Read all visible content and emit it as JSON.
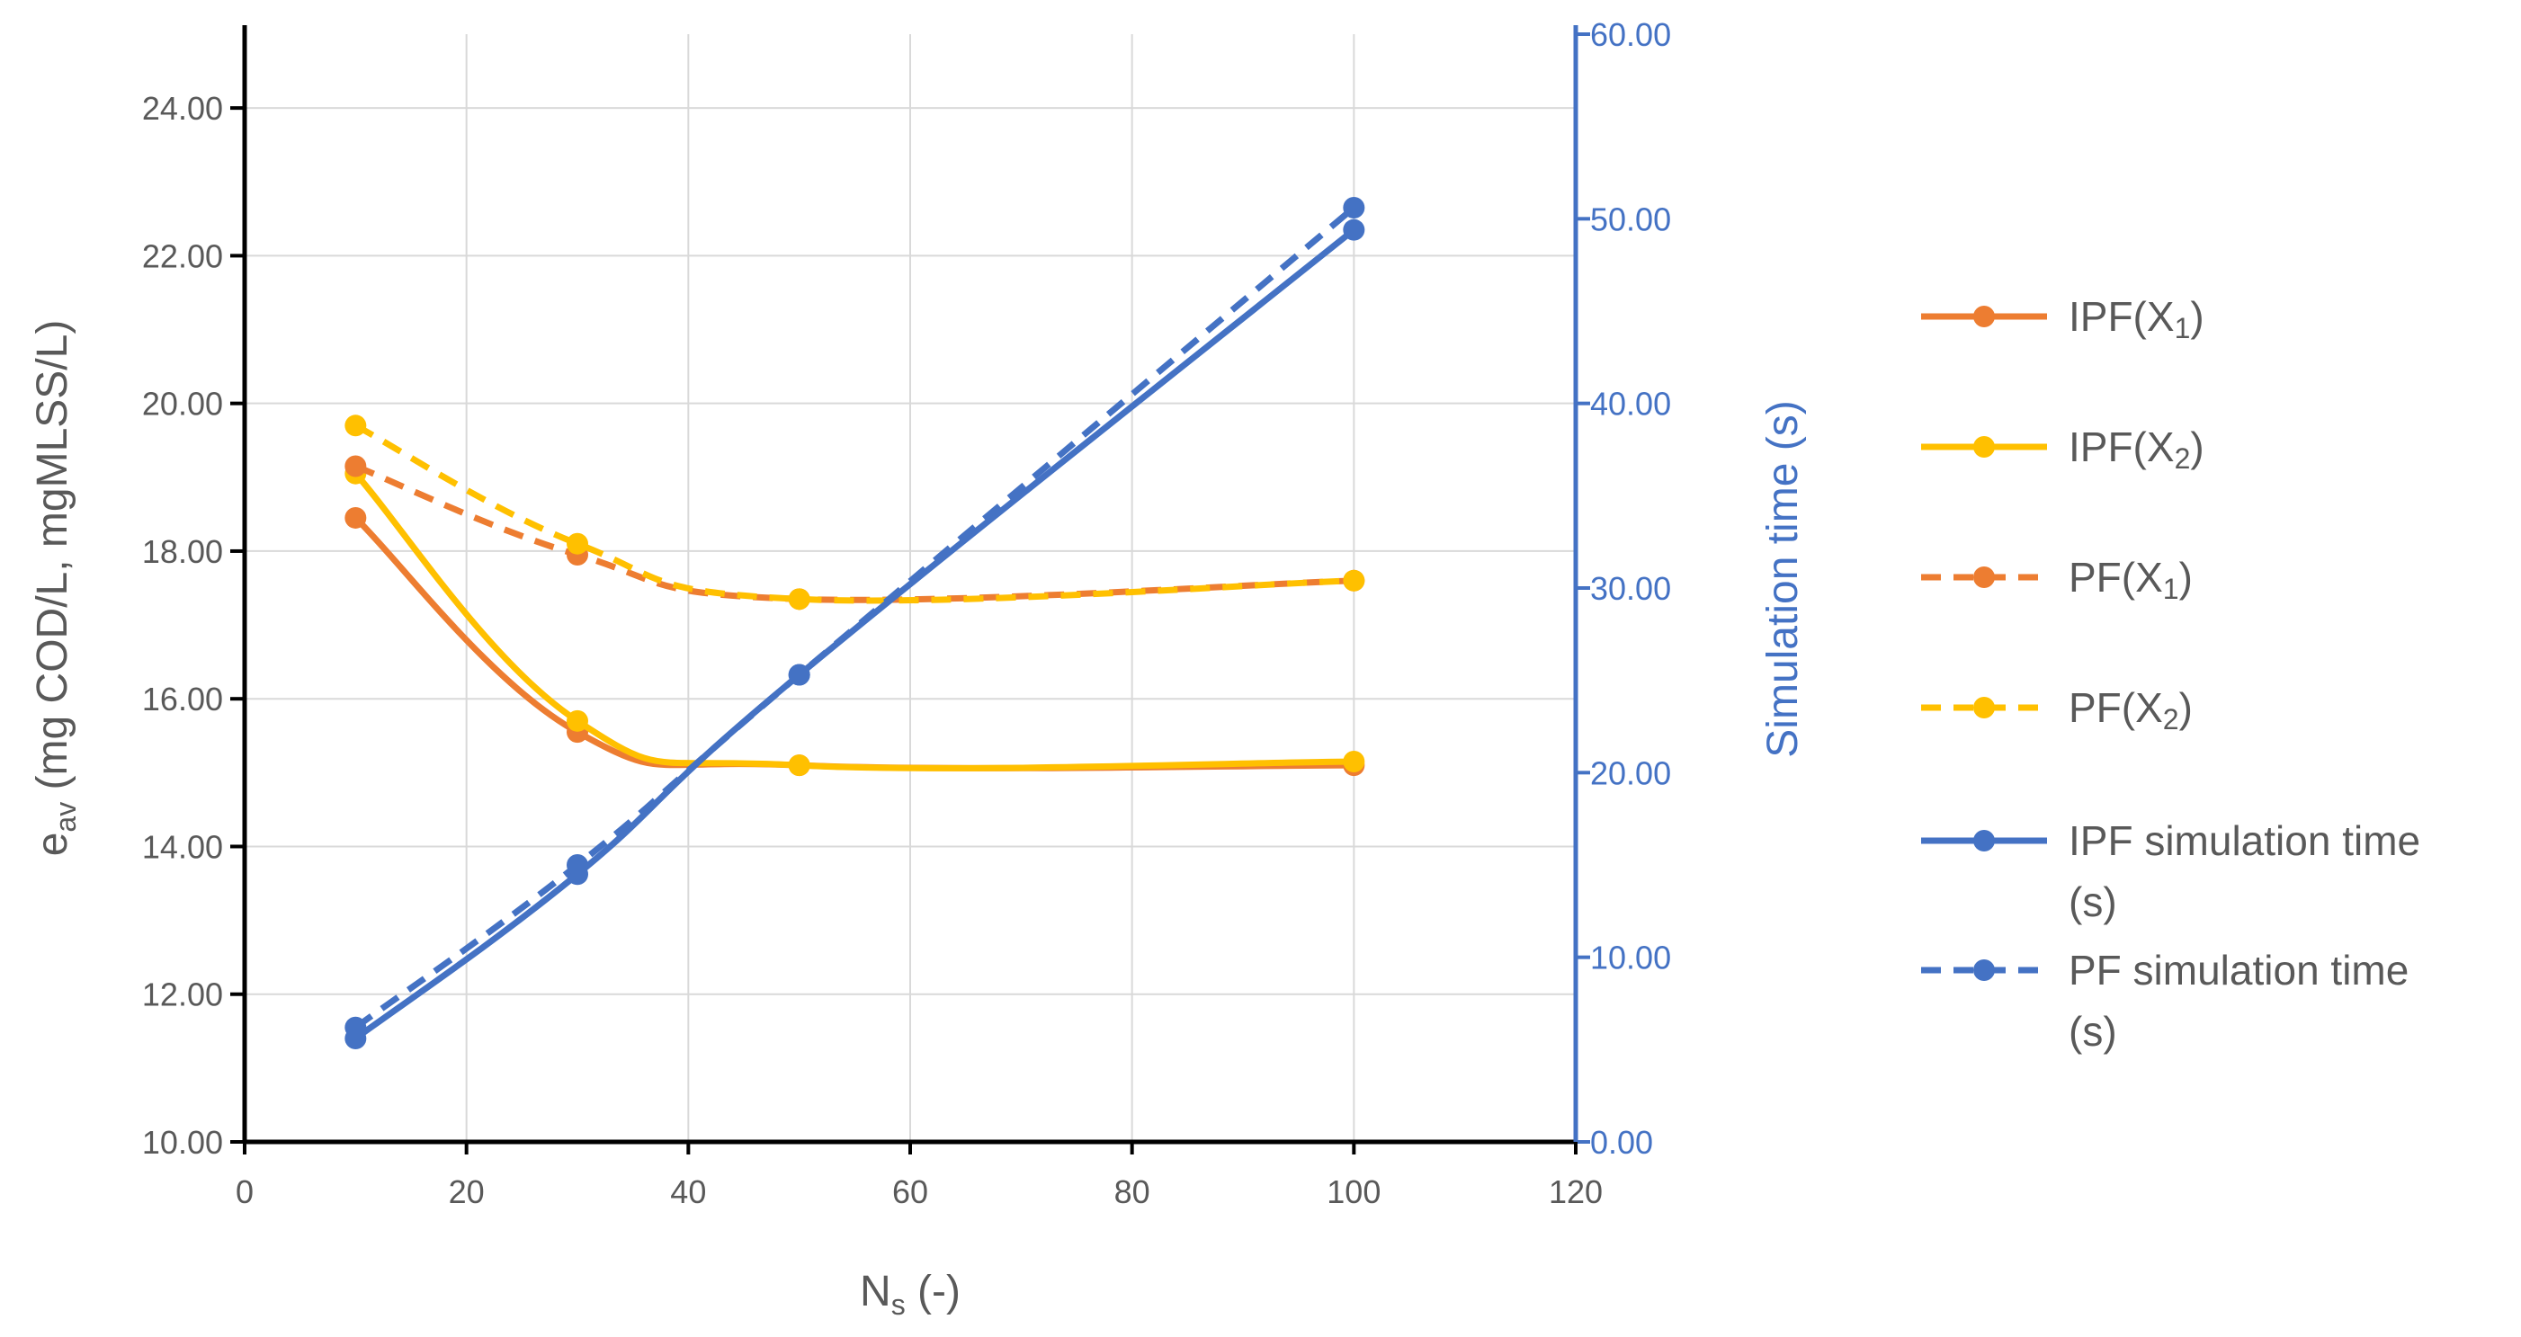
{
  "chart_data": {
    "type": "line",
    "x": [
      10,
      30,
      50,
      100
    ],
    "xlabel": "N",
    "xlabel_sub": "s",
    "xlabel_suffix": " (-)",
    "xlim": [
      0,
      120
    ],
    "xticks": [
      0,
      20,
      40,
      60,
      80,
      100,
      120
    ],
    "ylabel": "e",
    "ylabel_sub": "av",
    "ylabel_suffix": " (mg COD/L, mgMLSS/L)",
    "ylim": [
      10,
      25
    ],
    "yticks": [
      "10.00",
      "12.00",
      "14.00",
      "16.00",
      "18.00",
      "20.00",
      "22.00",
      "24.00"
    ],
    "y2label": "Simulation time (s)",
    "y2lim": [
      0,
      60
    ],
    "y2ticks": [
      "0.00",
      "10.00",
      "20.00",
      "30.00",
      "40.00",
      "50.00",
      "60.00"
    ],
    "grid": true,
    "legend_position": "right",
    "series": [
      {
        "name": "IPF(X1)",
        "legend_label": "IPF(X",
        "legend_sub": "1",
        "legend_suffix": ")",
        "axis": "left",
        "color": "#ED7D31",
        "dash": false,
        "values": [
          18.45,
          15.55,
          15.1,
          15.1
        ]
      },
      {
        "name": "IPF(X2)",
        "legend_label": "IPF(X",
        "legend_sub": "2",
        "legend_suffix": ")",
        "axis": "left",
        "color": "#FFC000",
        "dash": false,
        "values": [
          19.05,
          15.7,
          15.1,
          15.15
        ]
      },
      {
        "name": "PF(X1)",
        "legend_label": "PF(X",
        "legend_sub": "1",
        "legend_suffix": ")",
        "axis": "left",
        "color": "#ED7D31",
        "dash": true,
        "values": [
          19.15,
          17.95,
          17.35,
          17.6
        ]
      },
      {
        "name": "PF(X2)",
        "legend_label": "PF(X",
        "legend_sub": "2",
        "legend_suffix": ")",
        "axis": "left",
        "color": "#FFC000",
        "dash": true,
        "values": [
          19.7,
          18.1,
          17.35,
          17.6
        ]
      },
      {
        "name": "IPF simulation time (s)",
        "legend_label": "IPF simulation time",
        "legend_line2": "(s)",
        "axis": "right",
        "color": "#4472C4",
        "dash": false,
        "values": [
          5.6,
          14.5,
          25.3,
          49.4
        ]
      },
      {
        "name": "PF simulation time (s)",
        "legend_label": "PF simulation time",
        "legend_line2": "(s)",
        "axis": "right",
        "color": "#4472C4",
        "dash": true,
        "values": [
          6.2,
          15.0,
          25.3,
          50.6
        ]
      }
    ]
  }
}
